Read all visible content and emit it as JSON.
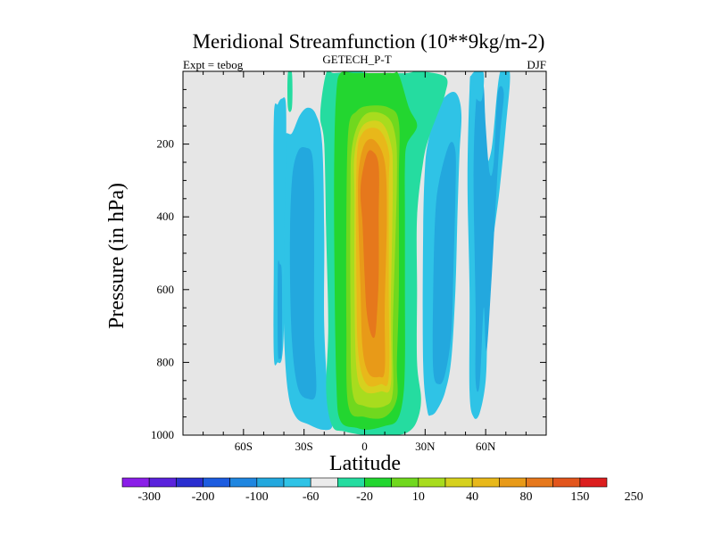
{
  "chart_data": {
    "type": "contour",
    "title": "Meridional Streamfunction (10**9kg/m-2)",
    "left_label": "Expt = tebog",
    "center_label": "GETECH_P-T",
    "right_label": "DJF",
    "xlabel": "Latitude",
    "ylabel": "Pressure (in hPa)",
    "xlim": [
      -90,
      90
    ],
    "ylim": [
      1000,
      0
    ],
    "x_ticks": [
      {
        "value": -60,
        "label": "60S"
      },
      {
        "value": -30,
        "label": "30S"
      },
      {
        "value": 0,
        "label": "0"
      },
      {
        "value": 30,
        "label": "30N"
      },
      {
        "value": 60,
        "label": "60N"
      }
    ],
    "y_ticks": [
      {
        "value": 200,
        "label": "200"
      },
      {
        "value": 400,
        "label": "400"
      },
      {
        "value": 600,
        "label": "600"
      },
      {
        "value": 800,
        "label": "800"
      },
      {
        "value": 1000,
        "label": "1000"
      }
    ],
    "background_color": "#e6e6e6",
    "colorbar": {
      "labels": [
        "-300",
        "-200",
        "-100",
        "-60",
        "-20",
        "10",
        "40",
        "80",
        "150",
        "250"
      ],
      "colors": [
        "#8a1ee8",
        "#5a22dc",
        "#2a2ed0",
        "#1c5ce0",
        "#1f86e0",
        "#23a8de",
        "#2fc3e6",
        "#ebebeb",
        "#25dca0",
        "#23d630",
        "#70d81e",
        "#a8dc1e",
        "#d6d11e",
        "#e8b81a",
        "#e89a18",
        "#e6781c",
        "#e2551c",
        "#dc1e1e"
      ]
    },
    "regions": [
      {
        "name": "southern-outer-cell",
        "level": "-10",
        "color": "#2fc3e6",
        "points": [
          [
            -40,
            190
          ],
          [
            -36,
            170
          ],
          [
            -32,
            120
          ],
          [
            -28,
            100
          ],
          [
            -24,
            120
          ],
          [
            -21,
            200
          ],
          [
            -20,
            450
          ],
          [
            -20,
            700
          ],
          [
            -18,
            900
          ],
          [
            -16,
            975
          ],
          [
            -21,
            985
          ],
          [
            -28,
            970
          ],
          [
            -34,
            950
          ],
          [
            -38,
            880
          ],
          [
            -40,
            700
          ],
          [
            -40,
            400
          ]
        ]
      },
      {
        "name": "southern-outer-cell-core",
        "level": "-20",
        "color": "#23a8de",
        "points": [
          [
            -36,
            300
          ],
          [
            -33,
            220
          ],
          [
            -29,
            210
          ],
          [
            -26,
            230
          ],
          [
            -25,
            330
          ],
          [
            -25,
            500
          ],
          [
            -25,
            720
          ],
          [
            -24,
            880
          ],
          [
            -28,
            900
          ],
          [
            -33,
            870
          ],
          [
            -36,
            740
          ],
          [
            -37,
            500
          ]
        ]
      },
      {
        "name": "southern-polar-strip",
        "level": "-10",
        "color": "#2fc3e6",
        "points": [
          [
            -45,
            130
          ],
          [
            -43,
            90
          ],
          [
            -41,
            75
          ],
          [
            -39,
            90
          ],
          [
            -39,
            250
          ],
          [
            -40,
            500
          ],
          [
            -40,
            700
          ],
          [
            -41,
            790
          ],
          [
            -43,
            800
          ],
          [
            -45,
            780
          ],
          [
            -45,
            500
          ]
        ]
      },
      {
        "name": "southern-polar-strip-core",
        "level": "-20",
        "color": "#23a8de",
        "points": [
          [
            -43,
            540
          ],
          [
            -42,
            530
          ],
          [
            -41,
            560
          ],
          [
            -41,
            760
          ],
          [
            -42,
            790
          ],
          [
            -43,
            760
          ]
        ]
      },
      {
        "name": "northern-cell-1",
        "level": "-10",
        "color": "#2fc3e6",
        "points": [
          [
            30,
            260
          ],
          [
            32,
            180
          ],
          [
            36,
            100
          ],
          [
            42,
            60
          ],
          [
            46,
            65
          ],
          [
            48,
            120
          ],
          [
            47,
            230
          ],
          [
            46,
            400
          ],
          [
            45,
            600
          ],
          [
            43,
            790
          ],
          [
            40,
            880
          ],
          [
            36,
            930
          ],
          [
            33,
            945
          ],
          [
            31,
            930
          ],
          [
            29,
            800
          ],
          [
            29,
            450
          ]
        ]
      },
      {
        "name": "northern-cell-1-core",
        "level": "-20",
        "color": "#23a8de",
        "points": [
          [
            35,
            400
          ],
          [
            37,
            300
          ],
          [
            42,
            200
          ],
          [
            45,
            220
          ],
          [
            45,
            340
          ],
          [
            44,
            550
          ],
          [
            43,
            720
          ],
          [
            40,
            830
          ],
          [
            37,
            860
          ],
          [
            34,
            820
          ],
          [
            34,
            600
          ]
        ]
      },
      {
        "name": "northern-cell-2",
        "level": "-10",
        "color": "#2fc3e6",
        "points": [
          [
            52,
            50
          ],
          [
            53,
            10
          ],
          [
            57,
            5
          ],
          [
            59,
            100
          ],
          [
            60,
            240
          ],
          [
            63,
            210
          ],
          [
            67,
            5
          ],
          [
            72,
            5
          ],
          [
            70,
            150
          ],
          [
            67,
            320
          ],
          [
            63,
            500
          ],
          [
            61,
            700
          ],
          [
            60,
            850
          ],
          [
            57,
            940
          ],
          [
            54,
            950
          ],
          [
            52,
            880
          ],
          [
            52,
            600
          ],
          [
            51,
            300
          ]
        ]
      },
      {
        "name": "northern-cell-2-core",
        "level": "-20",
        "color": "#23a8de",
        "points": [
          [
            54,
            300
          ],
          [
            55,
            100
          ],
          [
            57,
            40
          ],
          [
            59,
            40
          ],
          [
            60,
            150
          ],
          [
            62,
            280
          ],
          [
            64,
            250
          ],
          [
            66,
            60
          ],
          [
            69,
            60
          ],
          [
            67,
            180
          ],
          [
            65,
            360
          ],
          [
            63,
            560
          ],
          [
            61,
            740
          ],
          [
            60,
            760
          ],
          [
            59,
            650
          ],
          [
            57,
            860
          ],
          [
            55,
            850
          ],
          [
            55,
            650
          ]
        ]
      },
      {
        "name": "northern-polar-cell",
        "level": "-10",
        "color": "#2fc3e6",
        "points": [
          [
            54,
            60
          ],
          [
            55,
            5
          ],
          [
            59,
            5
          ],
          [
            58,
            80
          ]
        ]
      },
      {
        "name": "southern-polar-sliver",
        "level": "-10",
        "color": "#25dca0",
        "points": [
          [
            -38,
            5
          ],
          [
            -36,
            5
          ],
          [
            -36,
            100
          ],
          [
            -38,
            100
          ]
        ]
      },
      {
        "name": "main-cell-10",
        "level": "10",
        "color": "#25dca0",
        "points": [
          [
            -19,
            5
          ],
          [
            -15,
            5
          ],
          [
            -4,
            0
          ],
          [
            2,
            5
          ],
          [
            10,
            5
          ],
          [
            21,
            5
          ],
          [
            27,
            0
          ],
          [
            40,
            15
          ],
          [
            40,
            60
          ],
          [
            36,
            120
          ],
          [
            32,
            180
          ],
          [
            29,
            250
          ],
          [
            26,
            400
          ],
          [
            26,
            600
          ],
          [
            26,
            800
          ],
          [
            28,
            900
          ],
          [
            26,
            960
          ],
          [
            22,
            990
          ],
          [
            16,
            1000
          ],
          [
            8,
            1000
          ],
          [
            0,
            1000
          ],
          [
            -10,
            990
          ],
          [
            -16,
            975
          ],
          [
            -19,
            880
          ],
          [
            -18,
            700
          ],
          [
            -19,
            450
          ],
          [
            -20,
            200
          ],
          [
            -22,
            120
          ]
        ]
      },
      {
        "name": "main-cell-20",
        "level": "20",
        "color": "#23d630",
        "points": [
          [
            -14,
            60
          ],
          [
            -12,
            5
          ],
          [
            -5,
            5
          ],
          [
            5,
            5
          ],
          [
            14,
            5
          ],
          [
            17,
            10
          ],
          [
            22,
            100
          ],
          [
            26,
            150
          ],
          [
            21,
            200
          ],
          [
            20,
            260
          ],
          [
            20,
            400
          ],
          [
            20,
            600
          ],
          [
            20,
            800
          ],
          [
            19,
            900
          ],
          [
            16,
            960
          ],
          [
            10,
            975
          ],
          [
            2,
            985
          ],
          [
            -4,
            980
          ],
          [
            -12,
            960
          ],
          [
            -14,
            850
          ],
          [
            -15,
            500
          ],
          [
            -15,
            220
          ]
        ]
      },
      {
        "name": "main-cell-40",
        "level": "40",
        "color": "#70d81e",
        "points": [
          [
            -8,
            160
          ],
          [
            -4,
            110
          ],
          [
            2,
            95
          ],
          [
            12,
            100
          ],
          [
            17,
            140
          ],
          [
            17,
            300
          ],
          [
            17,
            600
          ],
          [
            16,
            800
          ],
          [
            16,
            900
          ],
          [
            10,
            950
          ],
          [
            0,
            950
          ],
          [
            -8,
            920
          ],
          [
            -9,
            700
          ],
          [
            -9,
            400
          ]
        ]
      },
      {
        "name": "main-cell-60",
        "level": "60",
        "color": "#a8dc1e",
        "points": [
          [
            -6,
            200
          ],
          [
            0,
            120
          ],
          [
            10,
            120
          ],
          [
            15,
            170
          ],
          [
            16,
            300
          ],
          [
            14,
            700
          ],
          [
            14,
            880
          ],
          [
            10,
            920
          ],
          [
            0,
            920
          ],
          [
            -6,
            880
          ],
          [
            -7,
            650
          ],
          [
            -7,
            350
          ]
        ]
      },
      {
        "name": "main-cell-80",
        "level": "80",
        "color": "#d6d11e",
        "points": [
          [
            -5,
            230
          ],
          [
            -1,
            150
          ],
          [
            8,
            140
          ],
          [
            13,
            200
          ],
          [
            14,
            300
          ],
          [
            13,
            650
          ],
          [
            13,
            860
          ],
          [
            8,
            880
          ],
          [
            0,
            880
          ],
          [
            -4,
            820
          ],
          [
            -5,
            600
          ],
          [
            -5,
            350
          ]
        ]
      },
      {
        "name": "main-cell-100",
        "level": "100",
        "color": "#e8b81a",
        "points": [
          [
            -4,
            260
          ],
          [
            -1,
            170
          ],
          [
            7,
            160
          ],
          [
            12,
            220
          ],
          [
            12,
            320
          ],
          [
            12,
            600
          ],
          [
            12,
            840
          ],
          [
            8,
            860
          ],
          [
            1,
            860
          ],
          [
            -3,
            780
          ],
          [
            -4,
            600
          ]
        ]
      },
      {
        "name": "main-cell-150",
        "level": "150",
        "color": "#e89a18",
        "points": [
          [
            -3,
            280
          ],
          [
            0,
            200
          ],
          [
            5,
            190
          ],
          [
            10,
            250
          ],
          [
            11,
            400
          ],
          [
            10,
            650
          ],
          [
            10,
            820
          ],
          [
            7,
            840
          ],
          [
            2,
            830
          ],
          [
            -1,
            760
          ],
          [
            -2,
            600
          ],
          [
            -3,
            420
          ]
        ]
      },
      {
        "name": "main-cell-200",
        "level": "200",
        "color": "#e6781c",
        "points": [
          [
            -2,
            320
          ],
          [
            1,
            230
          ],
          [
            4,
            220
          ],
          [
            7,
            260
          ],
          [
            7,
            400
          ],
          [
            7,
            560
          ],
          [
            6,
            680
          ],
          [
            5,
            730
          ],
          [
            3,
            720
          ],
          [
            1,
            660
          ],
          [
            0,
            560
          ],
          [
            -1,
            420
          ]
        ]
      }
    ]
  }
}
